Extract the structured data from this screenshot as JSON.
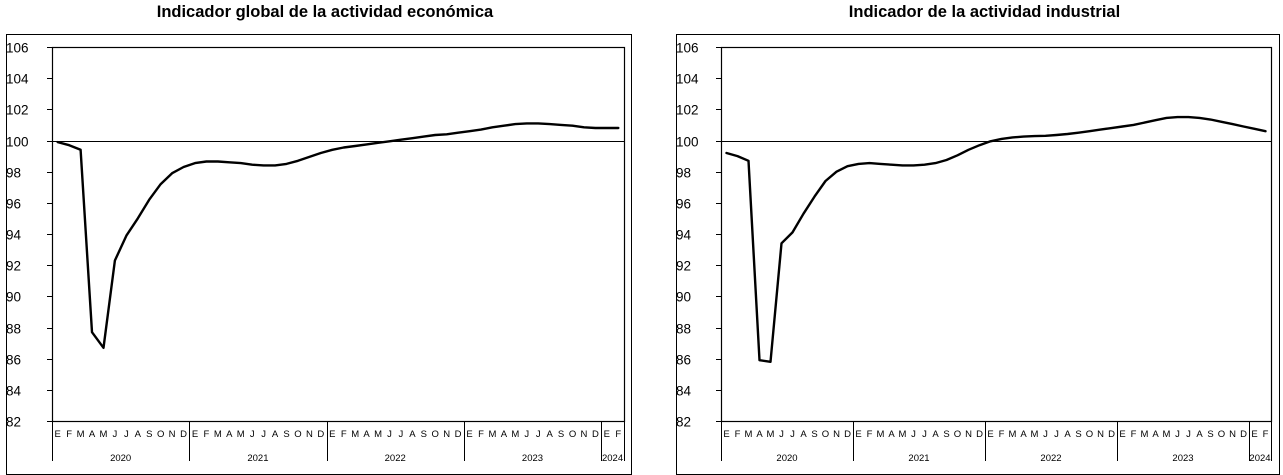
{
  "charts": [
    {
      "title": "Indicador global de la actividad económica",
      "chart_data": {
        "type": "line",
        "title": "Indicador global de la actividad económica",
        "xlabel": "",
        "ylabel": "",
        "ylim": [
          82,
          106
        ],
        "yticks": [
          82,
          84,
          86,
          88,
          90,
          92,
          94,
          96,
          98,
          100,
          102,
          104,
          106
        ],
        "reference_line": 100,
        "grid": false,
        "month_labels": [
          "E",
          "F",
          "M",
          "A",
          "M",
          "J",
          "J",
          "A",
          "S",
          "O",
          "N",
          "D",
          "E",
          "F",
          "M",
          "A",
          "M",
          "J",
          "J",
          "A",
          "S",
          "O",
          "N",
          "D",
          "E",
          "F",
          "M",
          "A",
          "M",
          "J",
          "J",
          "A",
          "S",
          "O",
          "N",
          "D",
          "E",
          "F",
          "M",
          "A",
          "M",
          "J",
          "J",
          "A",
          "S",
          "O",
          "N",
          "D",
          "E",
          "F"
        ],
        "year_labels": [
          {
            "label": "2020",
            "first_month": 0,
            "months": 12
          },
          {
            "label": "2021",
            "first_month": 12,
            "months": 12
          },
          {
            "label": "2022",
            "first_month": 24,
            "months": 12
          },
          {
            "label": "2023",
            "first_month": 36,
            "months": 12
          },
          {
            "label": "2024",
            "first_month": 48,
            "months": 2
          }
        ],
        "series": [
          {
            "values": [
              99.9,
              99.7,
              99.4,
              87.7,
              86.7,
              92.3,
              93.9,
              95.0,
              96.2,
              97.2,
              97.9,
              98.3,
              98.55,
              98.65,
              98.65,
              98.6,
              98.55,
              98.45,
              98.4,
              98.4,
              98.5,
              98.7,
              98.95,
              99.2,
              99.4,
              99.55,
              99.65,
              99.75,
              99.85,
              99.95,
              100.05,
              100.15,
              100.25,
              100.35,
              100.4,
              100.5,
              100.6,
              100.7,
              100.85,
              100.95,
              101.05,
              101.1,
              101.1,
              101.05,
              101.0,
              100.95,
              100.85,
              100.8,
              100.8,
              100.8
            ]
          }
        ]
      }
    },
    {
      "title": "Indicador de la actividad industrial",
      "chart_data": {
        "type": "line",
        "title": "Indicador de la actividad industrial",
        "xlabel": "",
        "ylabel": "",
        "ylim": [
          82,
          106
        ],
        "yticks": [
          82,
          84,
          86,
          88,
          90,
          92,
          94,
          96,
          98,
          100,
          102,
          104,
          106
        ],
        "reference_line": 100,
        "grid": false,
        "month_labels": [
          "E",
          "F",
          "M",
          "A",
          "M",
          "J",
          "J",
          "A",
          "S",
          "O",
          "N",
          "D",
          "E",
          "F",
          "M",
          "A",
          "M",
          "J",
          "J",
          "A",
          "S",
          "O",
          "N",
          "D",
          "E",
          "F",
          "M",
          "A",
          "M",
          "J",
          "J",
          "A",
          "S",
          "O",
          "N",
          "D",
          "E",
          "F",
          "M",
          "A",
          "M",
          "J",
          "J",
          "A",
          "S",
          "O",
          "N",
          "D",
          "E",
          "F"
        ],
        "year_labels": [
          {
            "label": "2020",
            "first_month": 0,
            "months": 12
          },
          {
            "label": "2021",
            "first_month": 12,
            "months": 12
          },
          {
            "label": "2022",
            "first_month": 24,
            "months": 12
          },
          {
            "label": "2023",
            "first_month": 36,
            "months": 12
          },
          {
            "label": "2024",
            "first_month": 48,
            "months": 2
          }
        ],
        "series": [
          {
            "values": [
              99.2,
              99.0,
              98.7,
              85.9,
              85.8,
              93.4,
              94.1,
              95.3,
              96.4,
              97.4,
              98.0,
              98.35,
              98.5,
              98.55,
              98.5,
              98.45,
              98.4,
              98.4,
              98.45,
              98.55,
              98.75,
              99.05,
              99.4,
              99.7,
              99.95,
              100.1,
              100.2,
              100.25,
              100.28,
              100.3,
              100.35,
              100.42,
              100.5,
              100.6,
              100.7,
              100.8,
              100.9,
              101.0,
              101.15,
              101.3,
              101.45,
              101.5,
              101.5,
              101.45,
              101.35,
              101.2,
              101.05,
              100.9,
              100.75,
              100.6
            ]
          }
        ]
      }
    }
  ]
}
